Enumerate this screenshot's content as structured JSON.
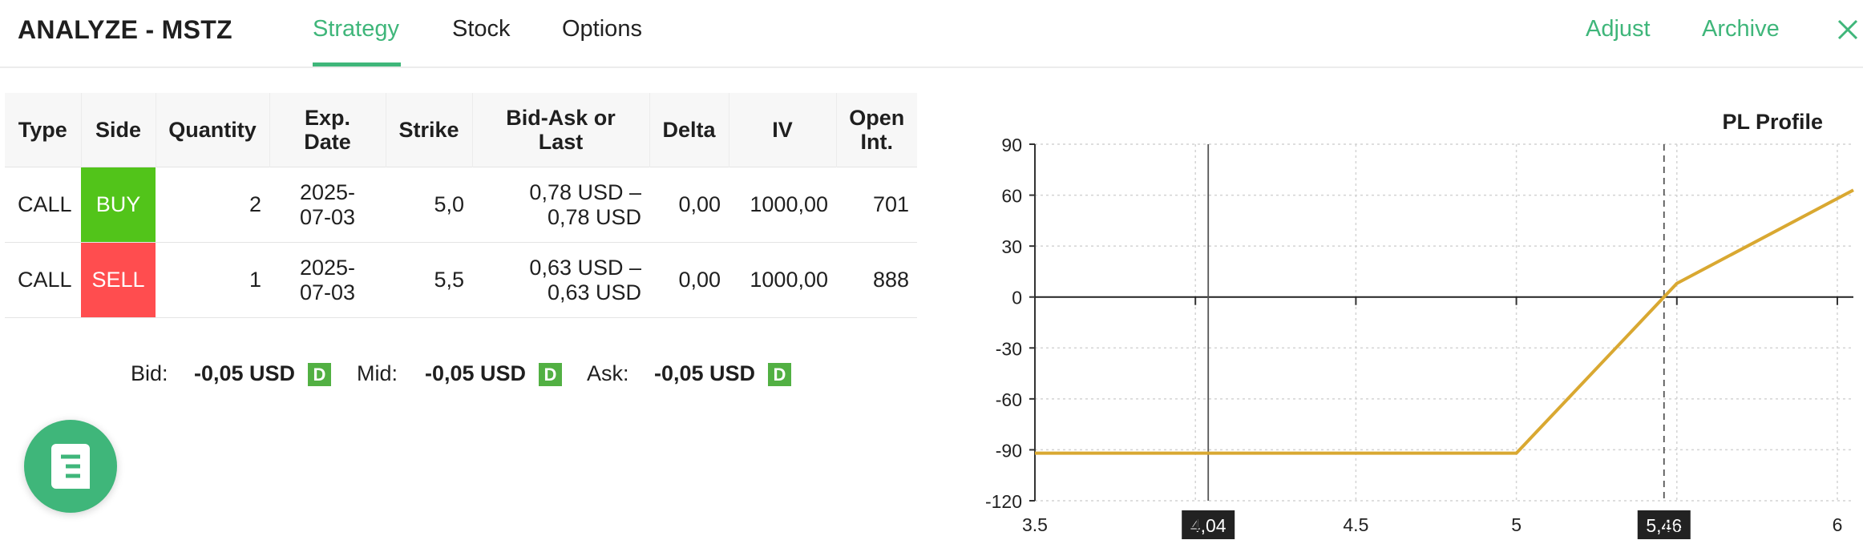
{
  "header": {
    "title": "ANALYZE - MSTZ",
    "tabs": [
      {
        "label": "Strategy",
        "active": true
      },
      {
        "label": "Stock",
        "active": false
      },
      {
        "label": "Options",
        "active": false
      }
    ],
    "links": {
      "adjust": "Adjust",
      "archive": "Archive"
    },
    "close_icon": "close-icon"
  },
  "legs_table": {
    "headers": [
      "Type",
      "Side",
      "Quantity",
      "Exp.\nDate",
      "Strike",
      "Bid-Ask or\nLast",
      "Delta",
      "IV",
      "Open\nInt."
    ],
    "rows": [
      {
        "type": "CALL",
        "side": "BUY",
        "quantity": "2",
        "exp_date": "2025-\n07-03",
        "strike": "5,0",
        "bid_ask": "0,78 USD –\n0,78 USD",
        "delta": "0,00",
        "iv": "1000,00",
        "open_int": "701"
      },
      {
        "type": "CALL",
        "side": "SELL",
        "quantity": "1",
        "exp_date": "2025-\n07-03",
        "strike": "5,5",
        "bid_ask": "0,63 USD –\n0,63 USD",
        "delta": "0,00",
        "iv": "1000,00",
        "open_int": "888"
      }
    ],
    "side_colors": {
      "BUY": "#52c41a",
      "SELL": "#ff4d4f"
    }
  },
  "summary": {
    "bid_label": "Bid:",
    "bid_value": "-0,05 USD",
    "mid_label": "Mid:",
    "mid_value": "-0,05 USD",
    "ask_label": "Ask:",
    "ask_value": "-0,05 USD",
    "badge": "D"
  },
  "fab": {
    "icon": "notes-icon"
  },
  "chart_data": {
    "type": "line",
    "title": "PL Profile",
    "xlim": [
      3.5,
      6.05
    ],
    "ylim": [
      -120,
      90
    ],
    "x_ticks": [
      "3.5",
      "4",
      "4.5",
      "5",
      "5.5",
      "6"
    ],
    "x_tick_values": [
      3.5,
      4,
      4.5,
      5,
      5.5,
      6
    ],
    "y_ticks": [
      90,
      60,
      30,
      0,
      -30,
      -60,
      -90,
      -120
    ],
    "grid": true,
    "series": [
      {
        "x": [
          3.5,
          5.0,
          5.5,
          6.05
        ],
        "y": [
          -92,
          -92,
          8,
          63
        ],
        "color": "#d9a831"
      }
    ],
    "markers": [
      {
        "x": 4.04,
        "label": "4,04",
        "style": "solid"
      },
      {
        "x": 5.46,
        "label": "5,46",
        "style": "dashed"
      }
    ]
  },
  "colors": {
    "accent": "#3fb67a",
    "line": "#d9a831",
    "badge": "#52b043"
  }
}
